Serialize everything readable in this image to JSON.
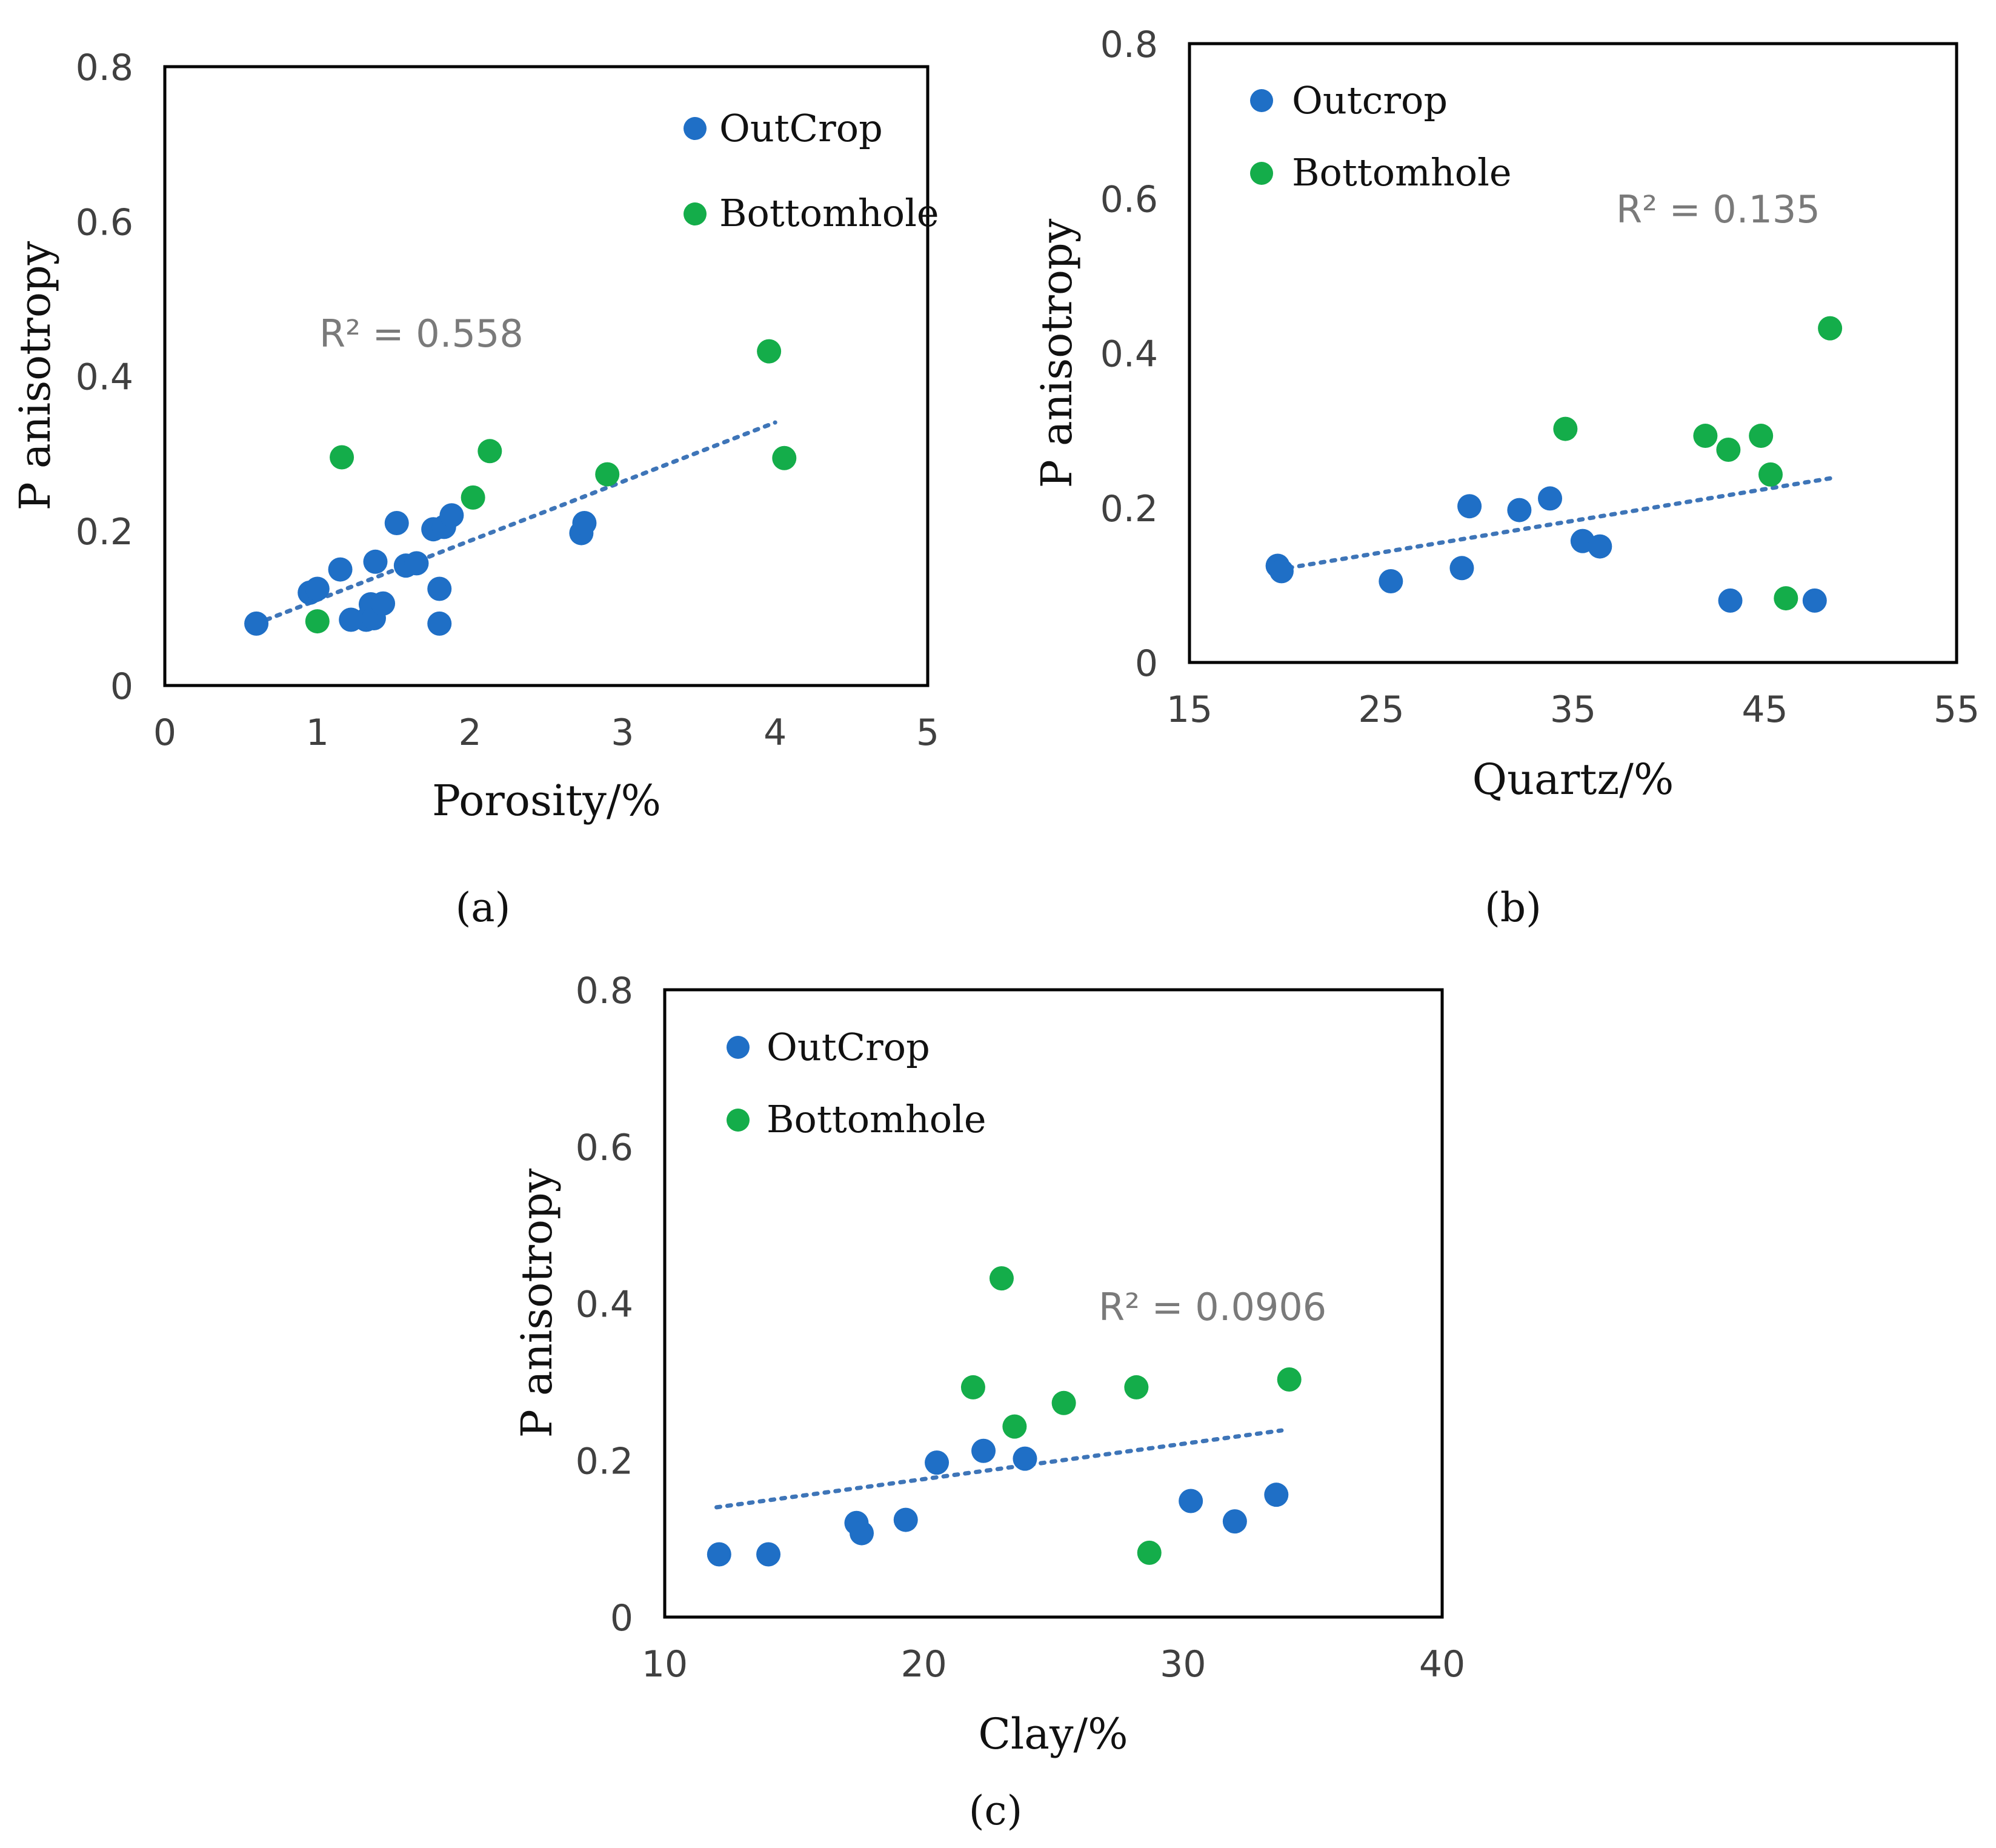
{
  "colors": {
    "outcrop": "#1F6FC6",
    "bottomhole": "#14AD4A",
    "trendline": "#3E75B8"
  },
  "chart_data": [
    {
      "panel": "a",
      "type": "scatter",
      "caption": "(a)",
      "xlabel": "Porosity/%",
      "ylabel": "P anisotropy",
      "xlim": [
        0,
        5
      ],
      "ylim": [
        0,
        0.8
      ],
      "xticks": [
        0,
        1,
        2,
        3,
        4,
        5
      ],
      "yticks": [
        0,
        0.2,
        0.4,
        0.6,
        0.8
      ],
      "r2_label": "R² = 0.558",
      "legend_position": "top-right",
      "trendline": [
        [
          0.6,
          0.08
        ],
        [
          4.0,
          0.34
        ]
      ],
      "series": [
        {
          "name": "OutCrop",
          "points": [
            [
              0.6,
              0.08
            ],
            [
              0.95,
              0.12
            ],
            [
              1.0,
              0.125
            ],
            [
              1.15,
              0.15
            ],
            [
              1.22,
              0.085
            ],
            [
              1.32,
              0.085
            ],
            [
              1.35,
              0.105
            ],
            [
              1.37,
              0.087
            ],
            [
              1.38,
              0.16
            ],
            [
              1.43,
              0.106
            ],
            [
              1.52,
              0.21
            ],
            [
              1.58,
              0.155
            ],
            [
              1.65,
              0.158
            ],
            [
              1.76,
              0.202
            ],
            [
              1.8,
              0.125
            ],
            [
              1.8,
              0.08
            ],
            [
              1.83,
              0.205
            ],
            [
              1.88,
              0.22
            ],
            [
              2.73,
              0.197
            ],
            [
              2.75,
              0.21
            ]
          ]
        },
        {
          "name": "Bottomhole",
          "points": [
            [
              1.0,
              0.083
            ],
            [
              1.16,
              0.295
            ],
            [
              2.02,
              0.243
            ],
            [
              2.13,
              0.303
            ],
            [
              2.9,
              0.273
            ],
            [
              3.96,
              0.432
            ],
            [
              4.06,
              0.294
            ]
          ]
        }
      ]
    },
    {
      "panel": "b",
      "type": "scatter",
      "caption": "(b)",
      "xlabel": "Quartz/%",
      "ylabel": "P anisotropy",
      "xlim": [
        15,
        55
      ],
      "ylim": [
        0,
        0.8
      ],
      "xticks": [
        15,
        25,
        35,
        45,
        55
      ],
      "yticks": [
        0,
        0.2,
        0.4,
        0.6,
        0.8
      ],
      "r2_label": "R² = 0.135",
      "legend_position": "top-left",
      "trendline": [
        [
          19.6,
          0.12
        ],
        [
          48.4,
          0.238
        ]
      ],
      "series": [
        {
          "name": "Outcrop",
          "points": [
            [
              19.6,
              0.125
            ],
            [
              19.8,
              0.118
            ],
            [
              25.5,
              0.105
            ],
            [
              29.2,
              0.122
            ],
            [
              29.6,
              0.202
            ],
            [
              32.2,
              0.197
            ],
            [
              33.8,
              0.212
            ],
            [
              35.5,
              0.157
            ],
            [
              36.4,
              0.15
            ],
            [
              43.2,
              0.08
            ],
            [
              47.6,
              0.08
            ]
          ]
        },
        {
          "name": "Bottomhole",
          "points": [
            [
              34.6,
              0.302
            ],
            [
              41.9,
              0.293
            ],
            [
              43.1,
              0.275
            ],
            [
              44.8,
              0.293
            ],
            [
              45.3,
              0.243
            ],
            [
              46.1,
              0.083
            ],
            [
              48.4,
              0.432
            ]
          ]
        }
      ]
    },
    {
      "panel": "c",
      "type": "scatter",
      "caption": "(c)",
      "xlabel": "Clay/%",
      "ylabel": "P anisotropy",
      "xlim": [
        10,
        40
      ],
      "ylim": [
        0,
        0.8
      ],
      "xticks": [
        10,
        20,
        30,
        40
      ],
      "yticks": [
        0,
        0.2,
        0.4,
        0.6,
        0.8
      ],
      "r2_label": "R² = 0.0906",
      "legend_position": "top-left",
      "trendline": [
        [
          12.0,
          0.14
        ],
        [
          33.8,
          0.238
        ]
      ],
      "series": [
        {
          "name": "OutCrop",
          "points": [
            [
              12.1,
              0.08
            ],
            [
              14.0,
              0.08
            ],
            [
              17.4,
              0.12
            ],
            [
              17.6,
              0.107
            ],
            [
              19.3,
              0.124
            ],
            [
              20.5,
              0.197
            ],
            [
              22.3,
              0.212
            ],
            [
              23.9,
              0.202
            ],
            [
              30.3,
              0.148
            ],
            [
              32.0,
              0.122
            ],
            [
              33.6,
              0.156
            ]
          ]
        },
        {
          "name": "Bottomhole",
          "points": [
            [
              21.9,
              0.293
            ],
            [
              23.0,
              0.432
            ],
            [
              23.5,
              0.243
            ],
            [
              25.4,
              0.273
            ],
            [
              28.2,
              0.293
            ],
            [
              28.7,
              0.082
            ],
            [
              34.1,
              0.303
            ]
          ]
        }
      ]
    }
  ]
}
